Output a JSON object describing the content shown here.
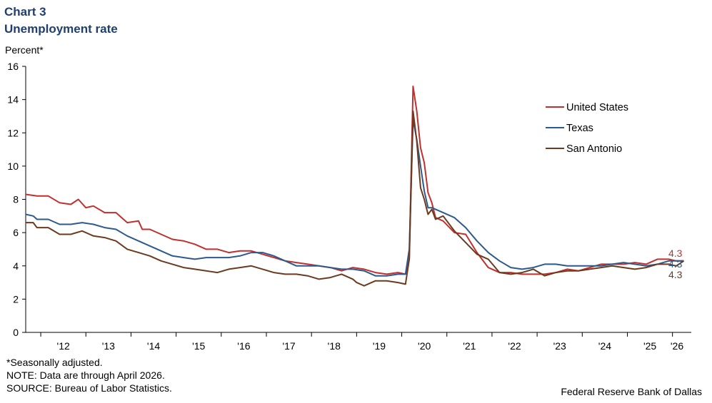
{
  "header": {
    "label": "Chart 3",
    "title": "Unemployment rate"
  },
  "footer": {
    "note1": "*Seasonally adjusted.",
    "note2": "NOTE: Data are through April 2026.",
    "source": "SOURCE: Bureau of Labor Statistics.",
    "credit": "Federal Reserve Bank of Dallas"
  },
  "chart_data": {
    "type": "line",
    "ylabel": "Percent*",
    "ylim": [
      0,
      16
    ],
    "yticks": [
      0,
      2,
      4,
      6,
      8,
      10,
      12,
      14,
      16
    ],
    "xlim": [
      "2011-09",
      "2026-06"
    ],
    "xtick_labels": [
      "'12",
      "'13",
      "'14",
      "'15",
      "'16",
      "'17",
      "'18",
      "'19",
      "'20",
      "'21",
      "'22",
      "'23",
      "'24",
      "'25",
      "'26"
    ],
    "grid": false,
    "legend_position": "top-right",
    "series": [
      {
        "name": "United States",
        "color": "#c0302e",
        "end_label": "4.3",
        "points": [
          [
            "2011-09",
            8.3
          ],
          [
            "2011-12",
            8.2
          ],
          [
            "2012-03",
            8.2
          ],
          [
            "2012-06",
            7.8
          ],
          [
            "2012-09",
            7.7
          ],
          [
            "2012-11",
            8.0
          ],
          [
            "2013-01",
            7.5
          ],
          [
            "2013-03",
            7.6
          ],
          [
            "2013-06",
            7.2
          ],
          [
            "2013-09",
            7.2
          ],
          [
            "2013-12",
            6.6
          ],
          [
            "2014-03",
            6.7
          ],
          [
            "2014-04",
            6.2
          ],
          [
            "2014-06",
            6.2
          ],
          [
            "2014-09",
            5.9
          ],
          [
            "2014-12",
            5.6
          ],
          [
            "2015-03",
            5.5
          ],
          [
            "2015-06",
            5.3
          ],
          [
            "2015-09",
            5.0
          ],
          [
            "2015-12",
            5.0
          ],
          [
            "2016-03",
            4.8
          ],
          [
            "2016-06",
            4.9
          ],
          [
            "2016-09",
            4.9
          ],
          [
            "2016-12",
            4.7
          ],
          [
            "2017-03",
            4.5
          ],
          [
            "2017-06",
            4.3
          ],
          [
            "2017-09",
            4.2
          ],
          [
            "2017-12",
            4.1
          ],
          [
            "2018-03",
            4.0
          ],
          [
            "2018-06",
            3.9
          ],
          [
            "2018-09",
            3.7
          ],
          [
            "2018-12",
            3.9
          ],
          [
            "2019-03",
            3.8
          ],
          [
            "2019-06",
            3.6
          ],
          [
            "2019-09",
            3.5
          ],
          [
            "2019-12",
            3.6
          ],
          [
            "2020-02",
            3.5
          ],
          [
            "2020-03",
            4.4
          ],
          [
            "2020-04",
            14.8
          ],
          [
            "2020-05",
            13.3
          ],
          [
            "2020-06",
            11.1
          ],
          [
            "2020-07",
            10.2
          ],
          [
            "2020-08",
            8.4
          ],
          [
            "2020-09",
            7.8
          ],
          [
            "2020-10",
            6.9
          ],
          [
            "2020-12",
            6.7
          ],
          [
            "2021-03",
            6.0
          ],
          [
            "2021-06",
            5.9
          ],
          [
            "2021-09",
            4.8
          ],
          [
            "2021-12",
            3.9
          ],
          [
            "2022-03",
            3.6
          ],
          [
            "2022-06",
            3.6
          ],
          [
            "2022-09",
            3.5
          ],
          [
            "2022-12",
            3.5
          ],
          [
            "2023-03",
            3.5
          ],
          [
            "2023-06",
            3.6
          ],
          [
            "2023-09",
            3.8
          ],
          [
            "2023-12",
            3.7
          ],
          [
            "2024-03",
            3.9
          ],
          [
            "2024-06",
            4.1
          ],
          [
            "2024-09",
            4.1
          ],
          [
            "2024-12",
            4.1
          ],
          [
            "2025-03",
            4.2
          ],
          [
            "2025-06",
            4.1
          ],
          [
            "2025-09",
            4.4
          ],
          [
            "2025-12",
            4.4
          ],
          [
            "2026-02",
            4.3
          ],
          [
            "2026-04",
            4.3
          ]
        ]
      },
      {
        "name": "Texas",
        "color": "#2c5a8c",
        "end_label": "4.3",
        "points": [
          [
            "2011-09",
            7.1
          ],
          [
            "2011-11",
            7.0
          ],
          [
            "2011-12",
            6.8
          ],
          [
            "2012-03",
            6.8
          ],
          [
            "2012-06",
            6.5
          ],
          [
            "2012-09",
            6.5
          ],
          [
            "2012-12",
            6.6
          ],
          [
            "2013-03",
            6.5
          ],
          [
            "2013-06",
            6.3
          ],
          [
            "2013-09",
            6.2
          ],
          [
            "2013-12",
            5.8
          ],
          [
            "2014-03",
            5.5
          ],
          [
            "2014-06",
            5.2
          ],
          [
            "2014-09",
            4.9
          ],
          [
            "2014-12",
            4.6
          ],
          [
            "2015-03",
            4.5
          ],
          [
            "2015-06",
            4.4
          ],
          [
            "2015-09",
            4.5
          ],
          [
            "2015-12",
            4.5
          ],
          [
            "2016-03",
            4.5
          ],
          [
            "2016-06",
            4.6
          ],
          [
            "2016-09",
            4.8
          ],
          [
            "2016-12",
            4.8
          ],
          [
            "2017-03",
            4.6
          ],
          [
            "2017-06",
            4.3
          ],
          [
            "2017-09",
            4.0
          ],
          [
            "2017-12",
            4.0
          ],
          [
            "2018-03",
            4.0
          ],
          [
            "2018-06",
            3.9
          ],
          [
            "2018-09",
            3.8
          ],
          [
            "2018-12",
            3.8
          ],
          [
            "2019-03",
            3.7
          ],
          [
            "2019-06",
            3.4
          ],
          [
            "2019-09",
            3.4
          ],
          [
            "2019-12",
            3.5
          ],
          [
            "2020-02",
            3.5
          ],
          [
            "2020-03",
            5.0
          ],
          [
            "2020-04",
            12.8
          ],
          [
            "2020-05",
            11.6
          ],
          [
            "2020-06",
            10.0
          ],
          [
            "2020-07",
            8.5
          ],
          [
            "2020-08",
            7.5
          ],
          [
            "2020-09",
            7.5
          ],
          [
            "2020-12",
            7.2
          ],
          [
            "2021-03",
            6.9
          ],
          [
            "2021-06",
            6.3
          ],
          [
            "2021-09",
            5.5
          ],
          [
            "2021-12",
            4.8
          ],
          [
            "2022-03",
            4.3
          ],
          [
            "2022-06",
            3.9
          ],
          [
            "2022-09",
            3.8
          ],
          [
            "2022-12",
            3.9
          ],
          [
            "2023-03",
            4.1
          ],
          [
            "2023-06",
            4.1
          ],
          [
            "2023-09",
            4.0
          ],
          [
            "2023-12",
            4.0
          ],
          [
            "2024-03",
            4.0
          ],
          [
            "2024-06",
            4.0
          ],
          [
            "2024-09",
            4.1
          ],
          [
            "2024-12",
            4.2
          ],
          [
            "2025-03",
            4.1
          ],
          [
            "2025-06",
            4.0
          ],
          [
            "2025-09",
            4.1
          ],
          [
            "2025-12",
            4.3
          ],
          [
            "2026-02",
            4.3
          ],
          [
            "2026-04",
            4.3
          ]
        ]
      },
      {
        "name": "San Antonio",
        "color": "#6b3a1f",
        "end_label": "4.3",
        "points": [
          [
            "2011-09",
            6.6
          ],
          [
            "2011-11",
            6.6
          ],
          [
            "2011-12",
            6.3
          ],
          [
            "2012-03",
            6.3
          ],
          [
            "2012-06",
            5.9
          ],
          [
            "2012-09",
            5.9
          ],
          [
            "2012-12",
            6.1
          ],
          [
            "2013-03",
            5.8
          ],
          [
            "2013-06",
            5.7
          ],
          [
            "2013-09",
            5.5
          ],
          [
            "2013-12",
            5.0
          ],
          [
            "2014-03",
            4.8
          ],
          [
            "2014-06",
            4.6
          ],
          [
            "2014-09",
            4.3
          ],
          [
            "2014-12",
            4.1
          ],
          [
            "2015-03",
            3.9
          ],
          [
            "2015-06",
            3.8
          ],
          [
            "2015-09",
            3.7
          ],
          [
            "2015-12",
            3.6
          ],
          [
            "2016-03",
            3.8
          ],
          [
            "2016-06",
            3.9
          ],
          [
            "2016-09",
            4.0
          ],
          [
            "2016-12",
            3.8
          ],
          [
            "2017-03",
            3.6
          ],
          [
            "2017-06",
            3.5
          ],
          [
            "2017-09",
            3.5
          ],
          [
            "2017-12",
            3.4
          ],
          [
            "2018-03",
            3.2
          ],
          [
            "2018-06",
            3.3
          ],
          [
            "2018-09",
            3.5
          ],
          [
            "2018-12",
            3.2
          ],
          [
            "2019-01",
            3.0
          ],
          [
            "2019-03",
            2.8
          ],
          [
            "2019-06",
            3.1
          ],
          [
            "2019-09",
            3.1
          ],
          [
            "2019-12",
            3.0
          ],
          [
            "2020-02",
            2.9
          ],
          [
            "2020-03",
            4.4
          ],
          [
            "2020-04",
            13.3
          ],
          [
            "2020-05",
            11.5
          ],
          [
            "2020-06",
            8.7
          ],
          [
            "2020-07",
            8.0
          ],
          [
            "2020-08",
            7.1
          ],
          [
            "2020-09",
            7.4
          ],
          [
            "2020-10",
            6.8
          ],
          [
            "2020-12",
            7.0
          ],
          [
            "2021-03",
            6.1
          ],
          [
            "2021-06",
            5.4
          ],
          [
            "2021-09",
            4.7
          ],
          [
            "2021-12",
            4.4
          ],
          [
            "2022-03",
            3.6
          ],
          [
            "2022-06",
            3.5
          ],
          [
            "2022-09",
            3.6
          ],
          [
            "2022-12",
            3.8
          ],
          [
            "2023-03",
            3.4
          ],
          [
            "2023-06",
            3.6
          ],
          [
            "2023-09",
            3.7
          ],
          [
            "2023-12",
            3.7
          ],
          [
            "2024-03",
            3.8
          ],
          [
            "2024-06",
            3.9
          ],
          [
            "2024-09",
            4.0
          ],
          [
            "2024-12",
            3.9
          ],
          [
            "2025-03",
            3.8
          ],
          [
            "2025-06",
            3.9
          ],
          [
            "2025-09",
            4.1
          ],
          [
            "2025-12",
            4.1
          ],
          [
            "2026-02",
            4.0
          ],
          [
            "2026-04",
            4.3
          ]
        ]
      }
    ]
  }
}
